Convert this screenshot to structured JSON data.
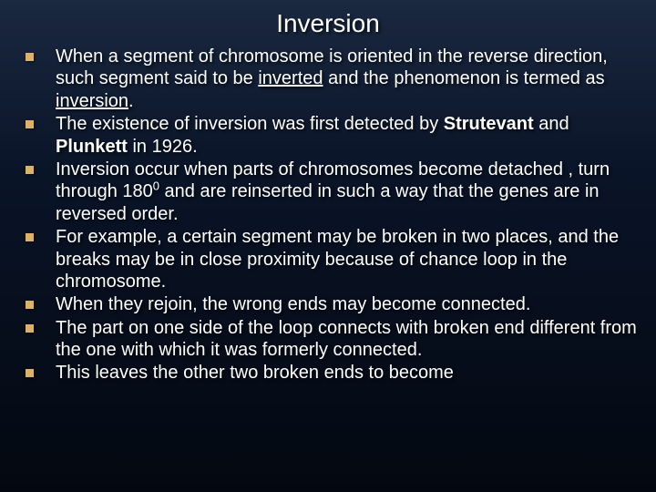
{
  "colors": {
    "bullet": "#d9b36c",
    "text": "#ffffff",
    "bg_top": "#1a2840",
    "bg_mid": "#0a1428",
    "bg_bottom": "#030810"
  },
  "typography": {
    "title_fontsize": 28,
    "body_fontsize": 20,
    "font_family": "Arial",
    "line_height": 1.22
  },
  "slide": {
    "title": "Inversion",
    "items": [
      {
        "html": "When a segment of chromosome is oriented in the reverse direction, such segment said to be <span class=\"ul\">inverted</span> and the phenomenon is termed as <span class=\"ul\">inversion</span>."
      },
      {
        "html": "The existence of inversion was first detected by <b>Strutevant</b> and <b>Plunkett</b> in 1926."
      },
      {
        "html": "Inversion occur when parts of chromosomes become detached , turn through 180<sup>0</sup> and are reinserted in such a way that the genes are in reversed order."
      },
      {
        "html": "For example, a certain segment may be broken in two places, and the breaks may be in close proximity because of chance loop in the chromosome."
      },
      {
        "html": "When they rejoin, the wrong ends may become connected."
      },
      {
        "html": "The part on one side of the loop connects with broken end different from the one with which it was formerly connected."
      },
      {
        "html": "This leaves the other two broken ends to become"
      }
    ]
  }
}
